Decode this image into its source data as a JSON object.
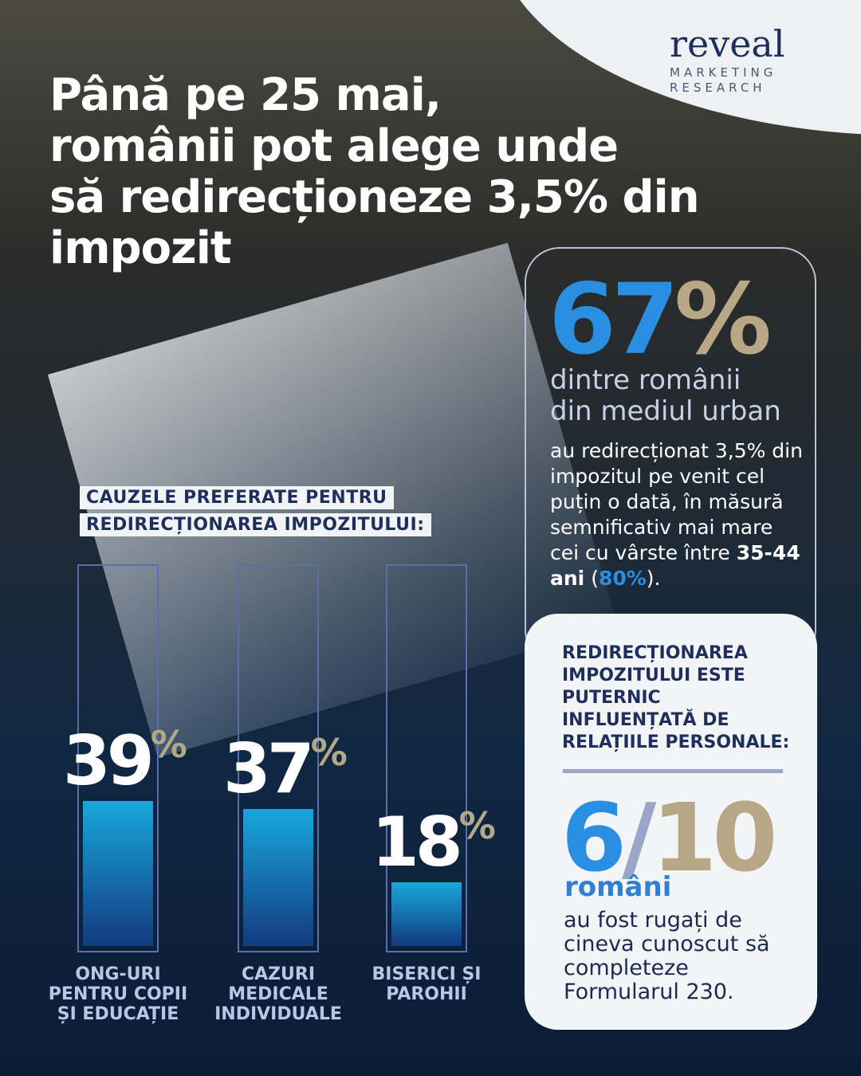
{
  "header": {
    "title": [
      "Până pe 25 mai,",
      "românii pot alege unde",
      "să redirecționeze 3,5% din impozit"
    ]
  },
  "logo": {
    "name": "reveal",
    "tagline": [
      "MARKETING",
      "RESEARCH"
    ]
  },
  "stat_urban": {
    "figure": "67%",
    "subtitle": [
      "dintre românii",
      "din mediul urban"
    ],
    "body": [
      "au redirecționat 3,5% din impozitul pe venit cel puțin o dată, în măsură semnificativ mai mare cei cu vârste între ",
      "35-44 ani",
      " (",
      "80%",
      ")."
    ]
  },
  "stat_relations": {
    "heading": "REDIRECȚIONAREA IMPOZITULUI ESTE PUTERNIC INFLUENȚATĂ DE RELAȚIILE PERSONALE:",
    "figure": "6/10",
    "subject": "români",
    "body": "au fost rugați de cineva cunoscut să completeze Formularul 230."
  },
  "chart_data": {
    "type": "bar",
    "title": [
      "CAUZELE PREFERATE PENTRU",
      "REDIRECȚIONAREA IMPOZITULUI:"
    ],
    "categories": [
      "ONG-URI PENTRU COPII ȘI EDUCAȚIE",
      "CAZURI MEDICALE INDIVIDUALE",
      "BISERICI ȘI PAROHII"
    ],
    "values": [
      39,
      37,
      18
    ],
    "value_labels": [
      "39%",
      "37%",
      "18%"
    ],
    "ylim": [
      0,
      100
    ]
  }
}
